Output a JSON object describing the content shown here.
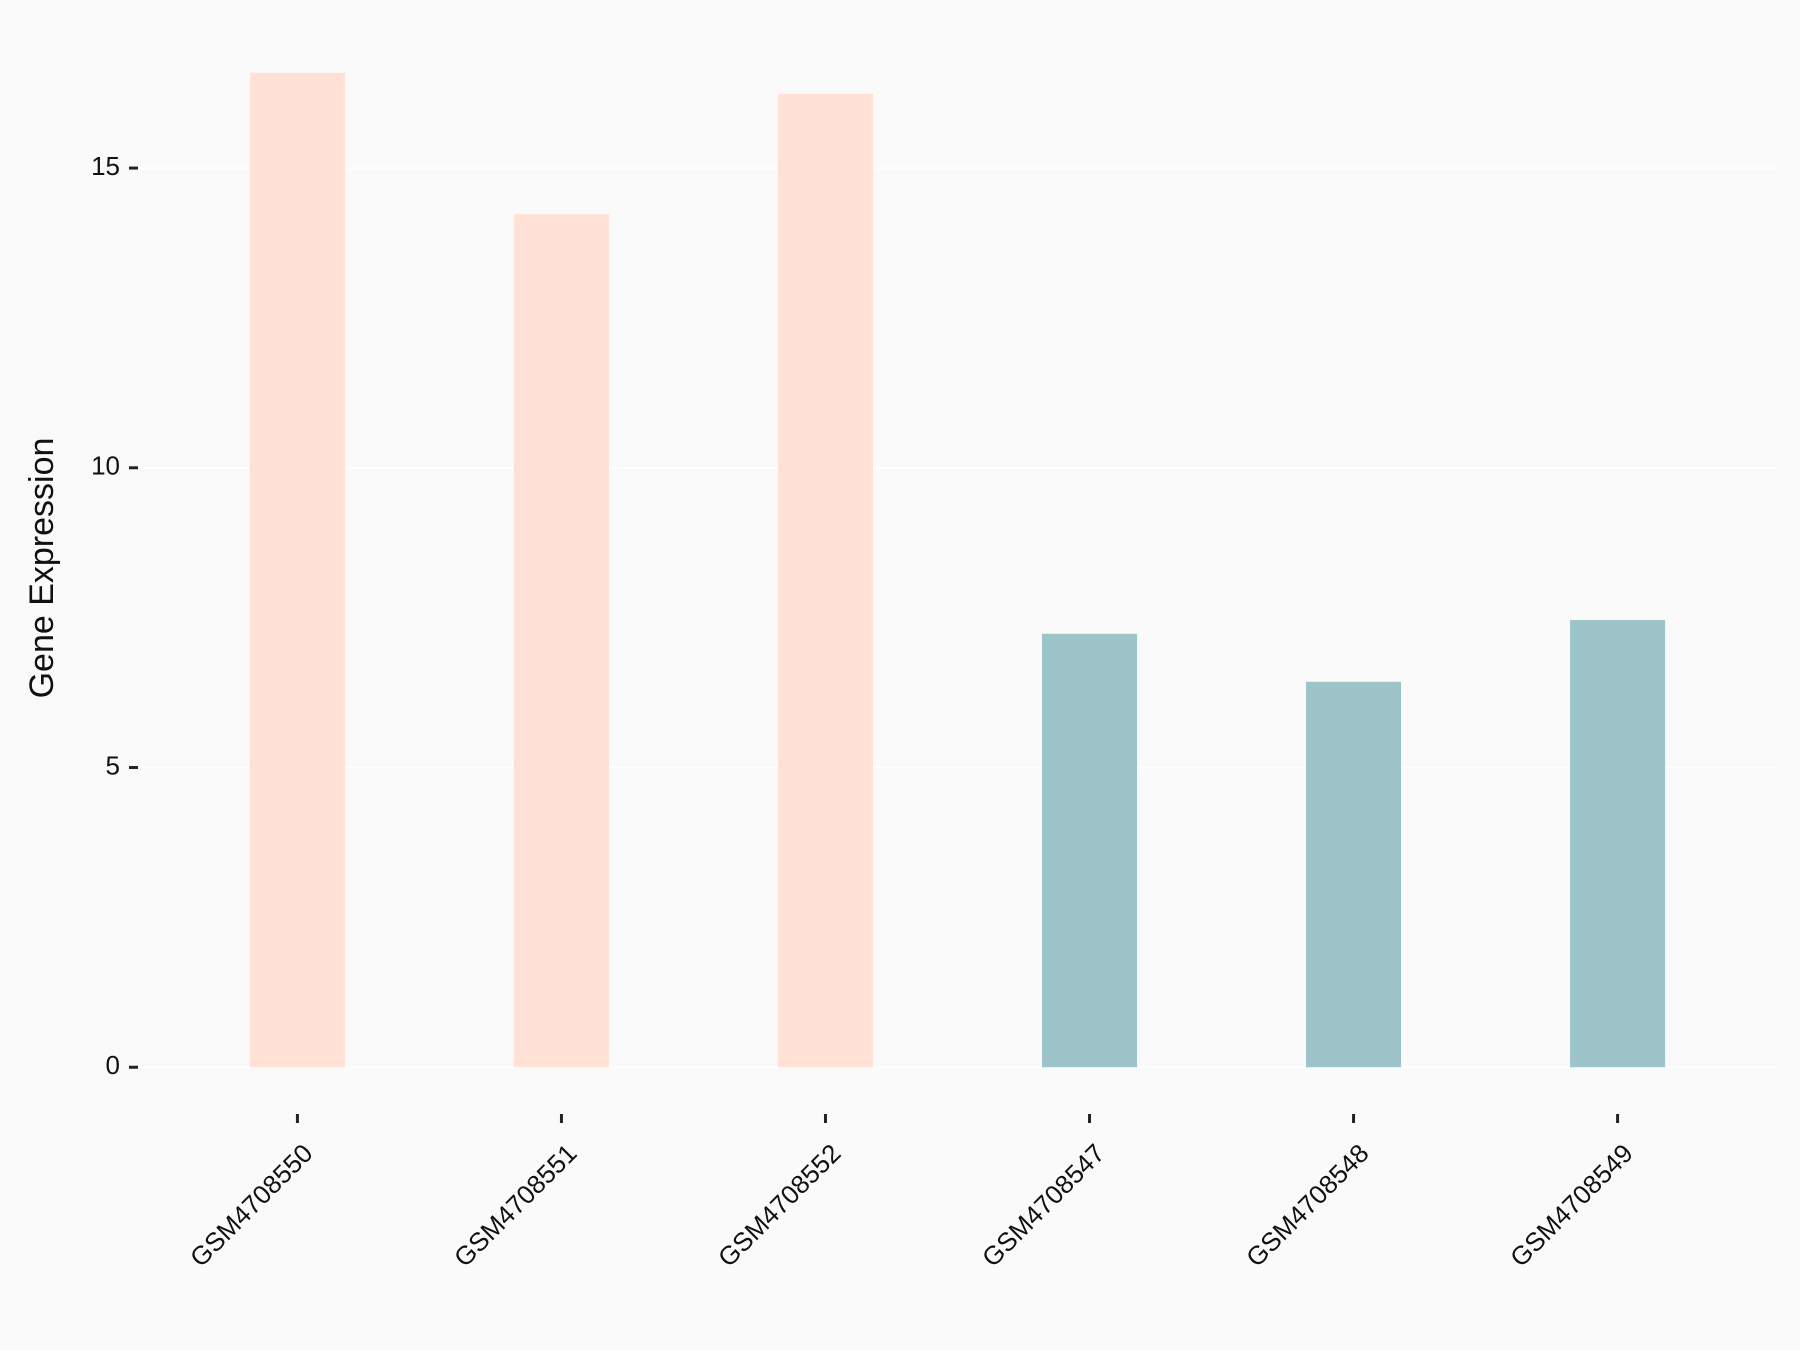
{
  "chart_data": {
    "type": "bar",
    "y_label": "Gene Expression",
    "categories": [
      "GSM4708550",
      "GSM4708551",
      "GSM4708552",
      "GSM4708547",
      "GSM4708548",
      "GSM4708549"
    ],
    "values": [
      16.59,
      14.23,
      16.24,
      7.23,
      6.43,
      7.46
    ],
    "colors": [
      "#ffe1d6",
      "#ffe1d6",
      "#ffe1d6",
      "#9dc4c8",
      "#9dc4c8",
      "#9dc4c8"
    ],
    "ylim": [
      -0.83,
      17.42
    ],
    "yticks": [
      0,
      5,
      10,
      15
    ],
    "grid": true
  }
}
